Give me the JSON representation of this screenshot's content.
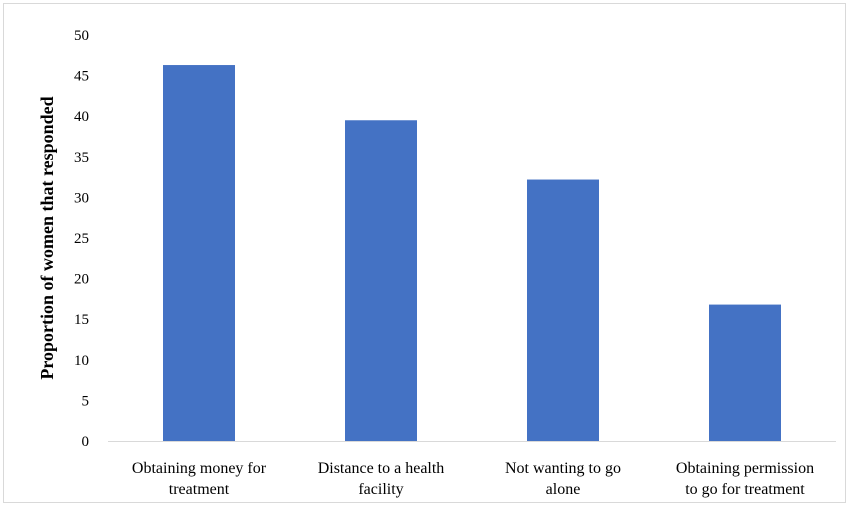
{
  "chart_data": {
    "type": "bar",
    "title": "",
    "xlabel": "",
    "ylabel": "Proportion of women that responded",
    "ylim": [
      0,
      50
    ],
    "yticks": [
      "0",
      "5",
      "10",
      "15",
      "20",
      "25",
      "30",
      "35",
      "40",
      "45",
      "50"
    ],
    "categories": [
      [
        "Obtaining money for",
        "treatment"
      ],
      [
        "Distance to a health",
        "facility"
      ],
      [
        "Not wanting to go",
        "alone"
      ],
      [
        "Obtaining permission",
        "to go for treatment"
      ]
    ],
    "values": [
      46.3,
      39.5,
      32.2,
      16.8
    ],
    "bar_color": "#4472C4",
    "grid": false,
    "legend": "none"
  }
}
